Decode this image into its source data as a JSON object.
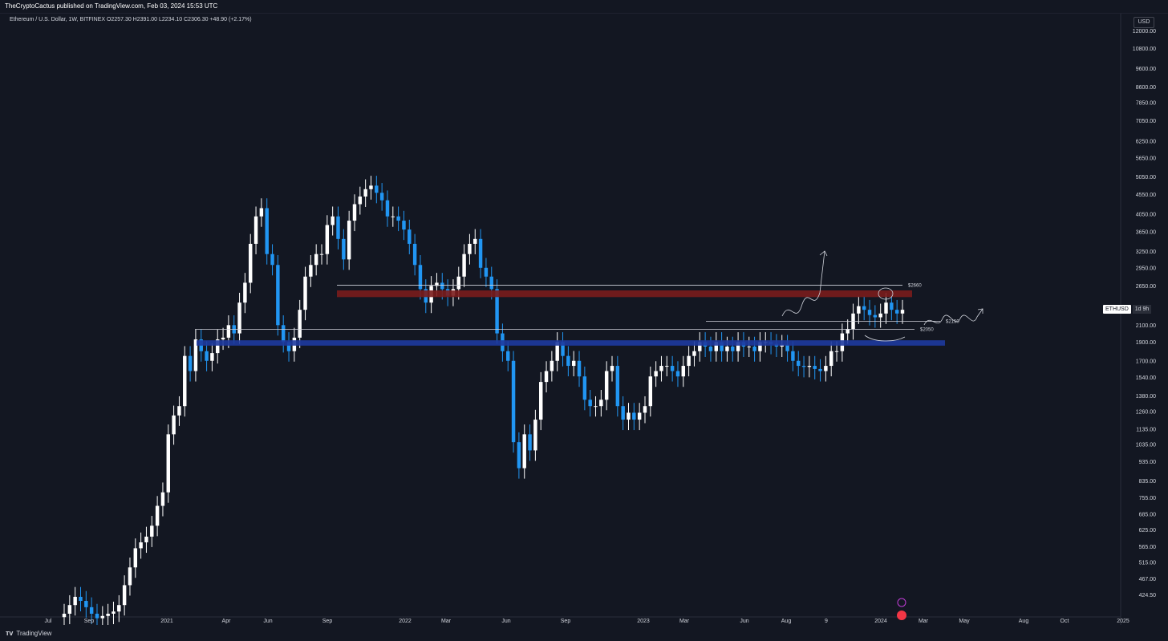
{
  "header": {
    "published": "TheCryptoCactus published on TradingView.com, Feb 03, 2024 15:53 UTC"
  },
  "symbol_line": "Ethereum / U.S. Dollar, 1W, BITFINEX  O2257.30  H2391.00  L2234.10  C2306.30  +48.90 (+2.17%)",
  "currency_button": "USD",
  "price_tag": {
    "symbol": "ETHUSD",
    "countdown": "1d 9h"
  },
  "footer": {
    "logo_text": "TradingView"
  },
  "colors": {
    "background": "#131722",
    "up_candle": "#ffffff",
    "down_candle": "#2196f3",
    "resistance_zone": "#7a1c1c",
    "support_zone": "#1e3a9e"
  },
  "chart_data": {
    "type": "candlestick",
    "scale": "log",
    "ylim": [
      380,
      12800
    ],
    "y_ticks": [
      "12000.00",
      "10800.00",
      "9600.00",
      "8600.00",
      "7850.00",
      "7050.00",
      "6250.00",
      "5650.00",
      "5050.00",
      "4550.00",
      "4050.00",
      "3650.00",
      "3250.00",
      "2950.00",
      "2650.00",
      "2100.00",
      "1900.00",
      "1700.00",
      "1540.00",
      "1380.00",
      "1260.00",
      "1135.00",
      "1035.00",
      "935.00",
      "835.00",
      "755.00",
      "685.00",
      "625.00",
      "565.00",
      "515.00",
      "467.00",
      "424.50"
    ],
    "x_ticks": [
      "Jul",
      "Sep",
      "2021",
      "Apr",
      "Jun",
      "Sep",
      "2022",
      "Mar",
      "Jun",
      "Sep",
      "2023",
      "Mar",
      "Jun",
      "Aug",
      "9",
      "2024",
      "Mar",
      "May",
      "Aug",
      "Oct",
      "2025"
    ],
    "levels": [
      {
        "label": "$2660",
        "price": 2660
      },
      {
        "label": "$2150",
        "price": 2150
      },
      {
        "label": "$2050",
        "price": 2050
      }
    ],
    "zones": [
      {
        "name": "resistance",
        "from": 2480,
        "to": 2580
      },
      {
        "name": "support",
        "from": 1860,
        "to": 1920
      }
    ],
    "closes_weekly": [
      380,
      400,
      420,
      410,
      395,
      380,
      370,
      375,
      380,
      385,
      400,
      450,
      500,
      560,
      580,
      600,
      640,
      720,
      780,
      1100,
      1230,
      1300,
      1750,
      1600,
      1930,
      1800,
      1700,
      1780,
      1930,
      1950,
      2100,
      2000,
      2400,
      2700,
      3400,
      4000,
      4200,
      3200,
      3000,
      2100,
      1900,
      1800,
      1950,
      2300,
      2800,
      3000,
      3200,
      3200,
      3800,
      4000,
      3500,
      3100,
      3900,
      4300,
      4500,
      4700,
      4800,
      4600,
      4400,
      4000,
      4000,
      3900,
      3700,
      3400,
      3000,
      2600,
      2400,
      2650,
      2700,
      2600,
      2500,
      2600,
      2800,
      3200,
      3400,
      3500,
      2950,
      2800,
      2600,
      2000,
      1800,
      1700,
      1050,
      900,
      1100,
      1000,
      1200,
      1500,
      1600,
      1700,
      1900,
      1750,
      1650,
      1700,
      1550,
      1350,
      1300,
      1300,
      1350,
      1600,
      1650,
      1300,
      1200,
      1250,
      1200,
      1250,
      1300,
      1550,
      1600,
      1650,
      1650,
      1600,
      1550,
      1650,
      1750,
      1800,
      1900,
      1850,
      1800,
      1900,
      1800,
      1850,
      1800,
      1900,
      1850,
      1850,
      1800,
      1900,
      1900,
      1880,
      1850,
      1870,
      1800,
      1700,
      1650,
      1640,
      1650,
      1620,
      1600,
      1650,
      1800,
      1800,
      2000,
      2050,
      2250,
      2350,
      2300,
      2230,
      2200,
      2250,
      2400,
      2300,
      2250,
      2300
    ]
  }
}
